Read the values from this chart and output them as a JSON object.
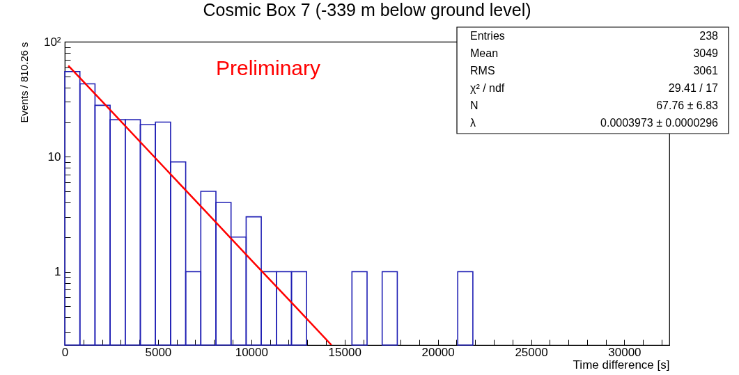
{
  "chart_data": {
    "type": "histogram",
    "title": "Cosmic Box 7 (-339 m below ground level)",
    "xlabel": "Time difference [s]",
    "ylabel": "Events / 810.26 s",
    "annotations": [
      "Preliminary",
      "Entries",
      "238",
      "Mean",
      "3049",
      "RMS",
      "3061",
      "χ² / ndf",
      "29.41 / 17",
      "N",
      "67.76 ± 6.83",
      "λ",
      "0.0003973 ± 0.0000296"
    ],
    "bins": [
      0,
      810.26,
      1620.52,
      2430.78,
      3241.04,
      4051.3,
      4861.56,
      5671.82,
      6482.08,
      7292.34,
      8102.6,
      8912.86,
      9723.12,
      10533.38,
      11343.64,
      12153.9,
      12964.16,
      13774.42,
      14584.68,
      15394.94,
      16205.2,
      17015.46,
      17825.72,
      18635.98,
      19446.24,
      20256.5,
      21066.76,
      21877.02,
      22687.28,
      23497.54,
      24307.8,
      25118.06,
      25928.32,
      26738.58,
      27548.84,
      28359.1,
      29169.36,
      29979.62,
      30789.88,
      31600.14,
      32410.4
    ],
    "values": [
      55,
      43,
      28,
      21,
      21,
      19,
      20,
      9,
      1,
      5,
      4,
      2,
      3,
      1,
      1,
      1,
      null,
      null,
      null,
      1,
      null,
      1,
      null,
      null,
      null,
      null,
      1,
      null,
      null,
      null,
      null,
      null,
      null,
      null,
      null,
      null,
      null,
      null,
      null,
      null
    ],
    "color": "#1f1fb4",
    "series": [
      {
        "type": "line",
        "color": "#ff0000",
        "x": [
          190,
          2500,
          5000,
          7500,
          10000,
          12500,
          14300
        ],
        "values": [
          62,
          24.9,
          9.2,
          3.41,
          1.26,
          0.47,
          0.23
        ]
      }
    ],
    "log": "y",
    "grid": false,
    "xlim": [
      0,
      32410.4
    ],
    "xticks": [
      0,
      {
        "value": 1000,
        "label": null
      },
      {
        "value": 2000,
        "label": null
      },
      {
        "value": 3000,
        "label": null
      },
      {
        "value": 4000,
        "label": null
      },
      5000,
      {
        "value": 6000,
        "label": null
      },
      {
        "value": 7000,
        "label": null
      },
      {
        "value": 8000,
        "label": null
      },
      {
        "value": 9000,
        "label": null
      },
      10000,
      {
        "value": 11000,
        "label": null
      },
      {
        "value": 12000,
        "label": null
      },
      {
        "value": 13000,
        "label": null
      },
      {
        "value": 14000,
        "label": null
      },
      15000,
      {
        "value": 16000,
        "label": null
      },
      {
        "value": 17000,
        "label": null
      },
      {
        "value": 18000,
        "label": null
      },
      {
        "value": 19000,
        "label": null
      },
      20000,
      {
        "value": 21000,
        "label": null
      },
      {
        "value": 22000,
        "label": null
      },
      {
        "value": 23000,
        "label": null
      },
      {
        "value": 24000,
        "label": null
      },
      25000,
      {
        "value": 26000,
        "label": null
      },
      {
        "value": 27000,
        "label": null
      },
      {
        "value": 28000,
        "label": null
      },
      {
        "value": 29000,
        "label": null
      },
      30000,
      {
        "value": 31000,
        "label": null
      },
      {
        "value": 32000,
        "label": null
      }
    ],
    "ylim": [
      0.23,
      100
    ],
    "yticks": [
      {
        "value": 0.3,
        "label": null
      },
      {
        "value": 0.4,
        "label": null
      },
      {
        "value": 0.5,
        "label": null
      },
      {
        "value": 0.6,
        "label": null
      },
      {
        "value": 0.7,
        "label": null
      },
      {
        "value": 0.8,
        "label": null
      },
      {
        "value": 0.9,
        "label": null
      },
      1,
      {
        "value": 2,
        "label": null
      },
      {
        "value": 3,
        "label": null
      },
      {
        "value": 4,
        "label": null
      },
      {
        "value": 5,
        "label": null
      },
      {
        "value": 6,
        "label": null
      },
      {
        "value": 7,
        "label": null
      },
      {
        "value": 8,
        "label": null
      },
      {
        "value": 9,
        "label": null
      },
      10,
      {
        "value": 20,
        "label": null
      },
      {
        "value": 30,
        "label": null
      },
      {
        "value": 40,
        "label": null
      },
      {
        "value": 50,
        "label": null
      },
      {
        "value": 60,
        "label": null
      },
      {
        "value": 70,
        "label": null
      },
      {
        "value": 80,
        "label": null
      },
      {
        "value": 90,
        "label": null
      },
      {
        "value": 100,
        "label": "10²"
      }
    ]
  }
}
